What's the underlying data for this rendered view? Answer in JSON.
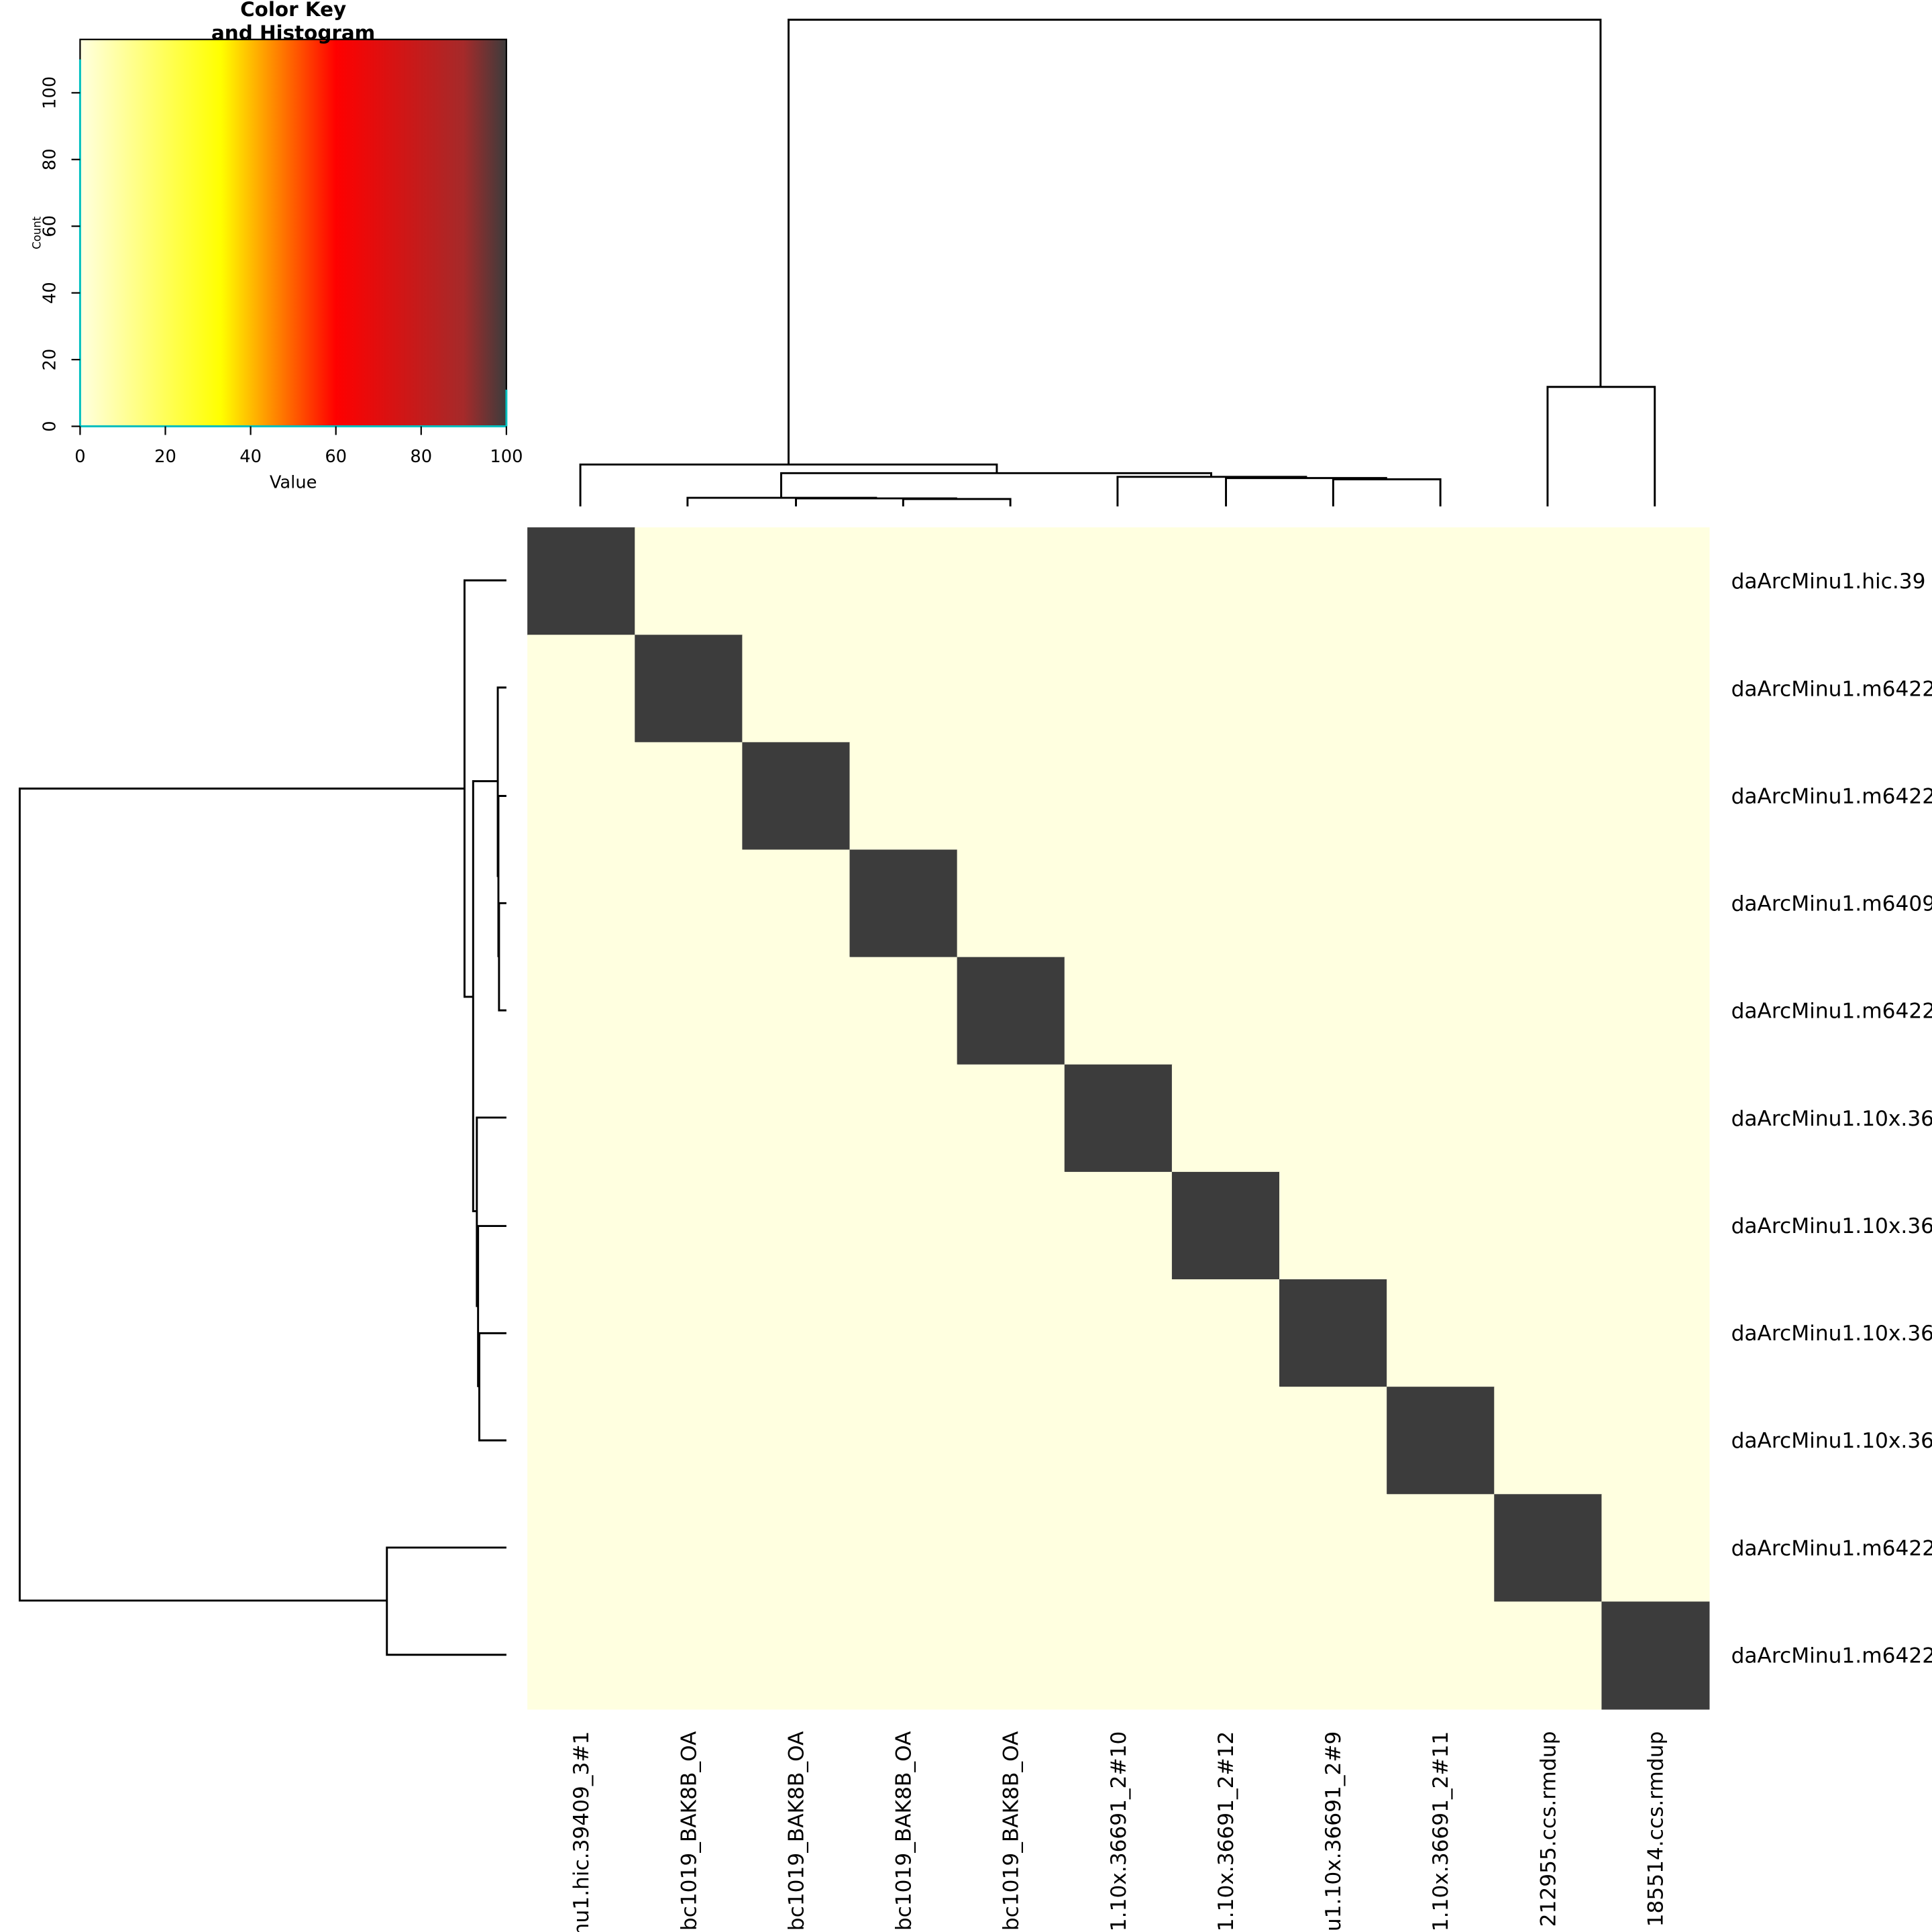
{
  "chart_data": {
    "type": "heatmap",
    "row_labels": [
      "daArcMinu1.hic.39",
      "daArcMinu1.m6422",
      "daArcMinu1.m6422",
      "daArcMinu1.m6409",
      "daArcMinu1.m6422",
      "daArcMinu1.10x.36",
      "daArcMinu1.10x.36",
      "daArcMinu1.10x.36",
      "daArcMinu1.10x.36",
      "daArcMinu1.m6422",
      "daArcMinu1.m6422"
    ],
    "col_labels": [
      "nu1.hic.39409_3#1",
      "bc1019_BAK8B_OA",
      "bc1019_BAK8B_OA",
      "bc1019_BAK8B_OA",
      "bc1019_BAK8B_OA",
      "1.10x.36691_2#10",
      "1.10x.36691_2#12",
      "u1.10x.36691_2#9",
      "1.10x.36691_2#11",
      "212955.ccs.rmdup",
      "185514.ccs.rmdup"
    ],
    "matrix": [
      [
        100,
        0,
        0,
        0,
        0,
        0,
        0,
        0,
        0,
        0,
        0
      ],
      [
        0,
        100,
        0,
        0,
        0,
        0,
        0,
        0,
        0,
        0,
        0
      ],
      [
        0,
        0,
        100,
        0,
        0,
        0,
        0,
        0,
        0,
        0,
        0
      ],
      [
        0,
        0,
        0,
        100,
        0,
        0,
        0,
        0,
        0,
        0,
        0
      ],
      [
        0,
        0,
        0,
        0,
        100,
        0,
        0,
        0,
        0,
        0,
        0
      ],
      [
        0,
        0,
        0,
        0,
        0,
        100,
        0,
        0,
        0,
        0,
        0
      ],
      [
        0,
        0,
        0,
        0,
        0,
        0,
        100,
        0,
        0,
        0,
        0
      ],
      [
        0,
        0,
        0,
        0,
        0,
        0,
        0,
        100,
        0,
        0,
        0
      ],
      [
        0,
        0,
        0,
        0,
        0,
        0,
        0,
        0,
        100,
        0,
        0
      ],
      [
        0,
        0,
        0,
        0,
        0,
        0,
        0,
        0,
        0,
        100,
        0
      ],
      [
        0,
        0,
        0,
        0,
        0,
        0,
        0,
        0,
        0,
        0,
        100
      ]
    ],
    "colorscale": [
      {
        "value": 0,
        "color": "#ffffe0"
      },
      {
        "value": 33,
        "color": "#ffff00"
      },
      {
        "value": 60,
        "color": "#ff0000"
      },
      {
        "value": 90,
        "color": "#a52a2a"
      },
      {
        "value": 100,
        "color": "#3c3c3c"
      }
    ],
    "key": {
      "title_lines": [
        "Color Key",
        "and Histogram"
      ],
      "xlabel": "Value",
      "ylabel": "Count",
      "xlim": [
        0,
        100
      ],
      "xticks": [
        0,
        20,
        40,
        60,
        80,
        100
      ],
      "ylim": [
        0,
        116
      ],
      "yticks": [
        0,
        20,
        40,
        60,
        80,
        100
      ],
      "histogram": {
        "x": [
          0,
          100
        ],
        "counts": [
          110,
          11
        ],
        "color": "#00bfbf"
      }
    }
  }
}
